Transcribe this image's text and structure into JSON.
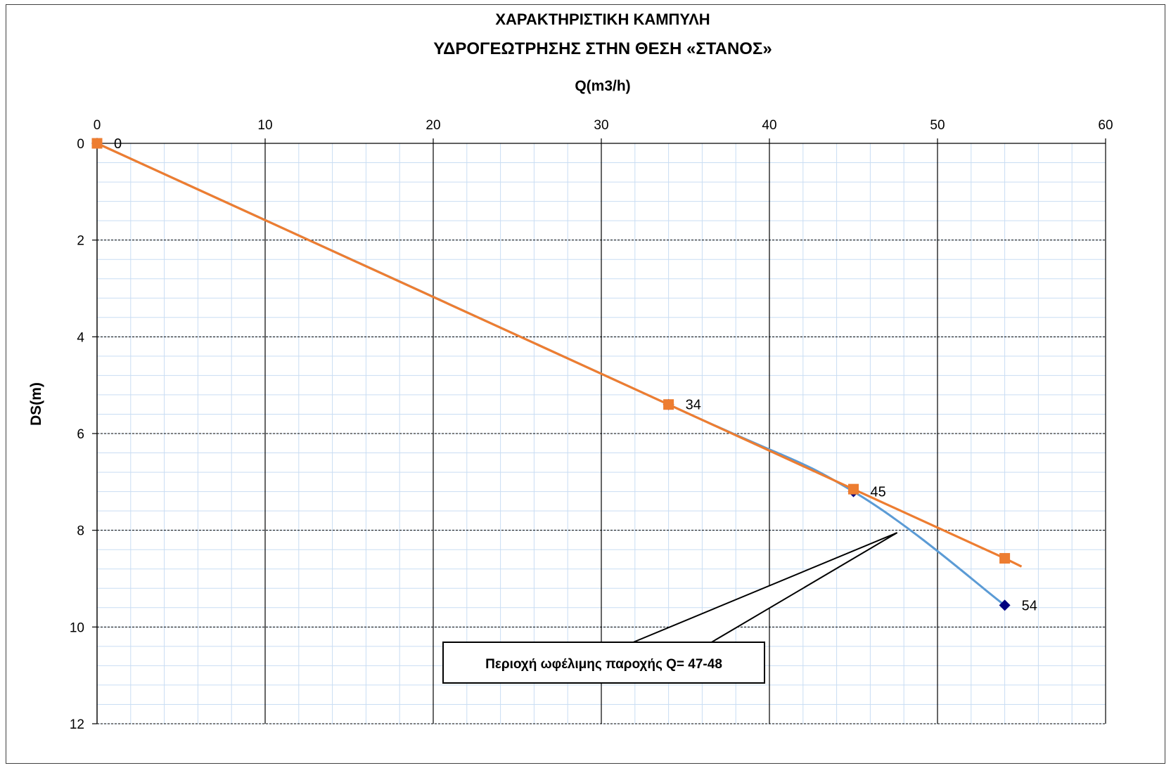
{
  "chart_data": {
    "type": "line",
    "title": "ΧΑΡΑΚΤΗΡΙΣΤΙΚΗ ΚΑΜΠΥΛΗ",
    "subtitle": "ΥΔΡΟΓΕΩΤΡΗΣΗΣ ΣΤΗΝ ΘΕΣΗ «ΣΤΑΝΟΣ»",
    "xlabel": "Q(m3/h)",
    "ylabel": "DS(m)",
    "xlim": [
      0,
      60
    ],
    "ylim": [
      0,
      12
    ],
    "y_inverted": true,
    "x_axis_position": "top",
    "x_ticks": [
      0,
      10,
      20,
      30,
      40,
      50,
      60
    ],
    "y_ticks": [
      0,
      2,
      4,
      6,
      8,
      10,
      12
    ],
    "grid": true,
    "series": [
      {
        "marker": "diamond",
        "color": "#5B9BD5",
        "marker_color": "#000080",
        "points": [
          {
            "x": 0,
            "y": 0,
            "label": "0"
          },
          {
            "x": 34,
            "y": 5.4,
            "label": "34"
          },
          {
            "x": 45,
            "y": 7.2,
            "label": "45"
          },
          {
            "x": 54,
            "y": 9.55,
            "label": "54"
          }
        ]
      },
      {
        "marker": "square",
        "color": "#ED7D31",
        "marker_color": "#ED7D31",
        "points": [
          {
            "x": 0,
            "y": 0
          },
          {
            "x": 34,
            "y": 5.4
          },
          {
            "x": 45,
            "y": 7.15
          },
          {
            "x": 54,
            "y": 8.58
          }
        ],
        "trend_end": {
          "x": 55,
          "y": 8.75
        }
      }
    ],
    "annotation": {
      "text": "Περιοχή ωφέλιμης παροχής Q= 47-48",
      "points_to": {
        "x": 47.6,
        "y": 8.05
      }
    }
  }
}
